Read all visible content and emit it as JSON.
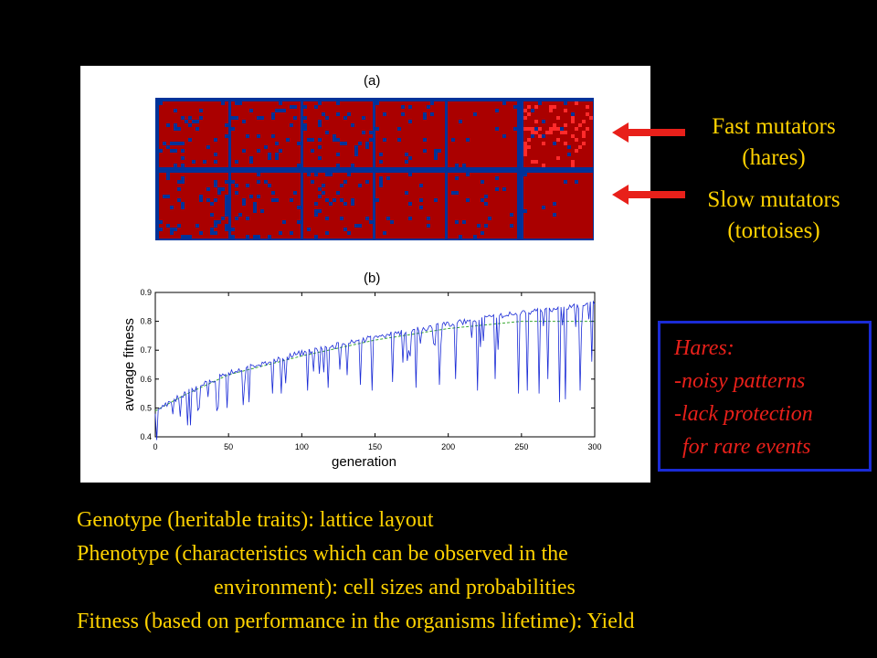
{
  "figure": {
    "panel_a_label": "(a)",
    "panel_b_label": "(b)",
    "lattice_colors": {
      "background": "#003399",
      "cell": "#aa0000",
      "bright_cell": "#ff2a2a"
    }
  },
  "chart_data": {
    "type": "line",
    "xlabel": "generation",
    "ylabel": "average fitness",
    "xlim": [
      0,
      300
    ],
    "ylim": [
      0.4,
      0.9
    ],
    "x_ticks": [
      "0",
      "50",
      "100",
      "150",
      "200",
      "250",
      "300"
    ],
    "y_ticks": [
      "0.4",
      "0.5",
      "0.6",
      "0.7",
      "0.8",
      "0.9"
    ],
    "grid": false,
    "series": [
      {
        "style": "solid",
        "color": "#1a2bd6",
        "trend": [
          [
            0,
            0.49
          ],
          [
            20,
            0.55
          ],
          [
            50,
            0.62
          ],
          [
            100,
            0.69
          ],
          [
            150,
            0.745
          ],
          [
            200,
            0.79
          ],
          [
            250,
            0.83
          ],
          [
            300,
            0.86
          ]
        ],
        "dips": [
          [
            17,
            0.47
          ],
          [
            22,
            0.44
          ],
          [
            24,
            0.44
          ],
          [
            30,
            0.5
          ],
          [
            42,
            0.49
          ],
          [
            49,
            0.5
          ],
          [
            60,
            0.51
          ],
          [
            64,
            0.52
          ],
          [
            80,
            0.55
          ],
          [
            86,
            0.55
          ],
          [
            104,
            0.56
          ],
          [
            118,
            0.57
          ],
          [
            140,
            0.58
          ],
          [
            148,
            0.56
          ],
          [
            162,
            0.59
          ],
          [
            178,
            0.57
          ],
          [
            194,
            0.58
          ],
          [
            205,
            0.6
          ],
          [
            220,
            0.56
          ],
          [
            232,
            0.6
          ],
          [
            248,
            0.55
          ],
          [
            254,
            0.56
          ],
          [
            262,
            0.55
          ],
          [
            268,
            0.6
          ],
          [
            276,
            0.52
          ],
          [
            280,
            0.53
          ],
          [
            290,
            0.56
          ],
          [
            298,
            0.66
          ]
        ]
      },
      {
        "style": "dashed",
        "color": "#3aa832",
        "trend": [
          [
            0,
            0.49
          ],
          [
            20,
            0.545
          ],
          [
            50,
            0.615
          ],
          [
            100,
            0.68
          ],
          [
            150,
            0.735
          ],
          [
            200,
            0.775
          ],
          [
            250,
            0.8
          ],
          [
            300,
            0.8
          ]
        ]
      }
    ]
  },
  "side_labels": {
    "fast_line1": "Fast mutators",
    "fast_line2": "(hares)",
    "slow_line1": "Slow mutators",
    "slow_line2": "(tortoises)",
    "arrow_color": "#e8201a"
  },
  "note": {
    "line1": "Hares:",
    "line2": "-noisy patterns",
    "line3": "-lack protection",
    "line4": "for rare events"
  },
  "bottom_text": {
    "line1": "Genotype (heritable traits): lattice layout",
    "line2": "Phenotype (characteristics which can be observed in the",
    "line3": "environment): cell sizes and probabilities",
    "line4": "Fitness (based on performance in the organisms lifetime): Yield"
  }
}
